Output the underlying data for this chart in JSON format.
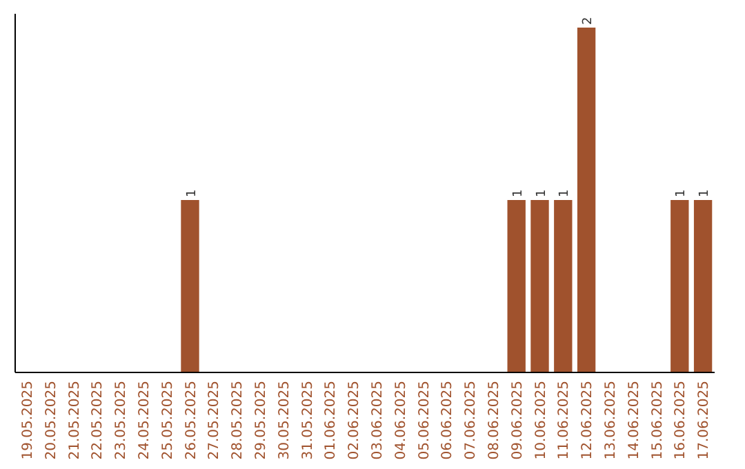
{
  "chart_data": {
    "type": "bar",
    "categories": [
      "19.05.2025",
      "20.05.2025",
      "21.05.2025",
      "22.05.2025",
      "23.05.2025",
      "24.05.2025",
      "25.05.2025",
      "26.05.2025",
      "27.05.2025",
      "28.05.2025",
      "29.05.2025",
      "30.05.2025",
      "31.05.2025",
      "01.06.2025",
      "02.06.2025",
      "03.06.2025",
      "04.06.2025",
      "05.06.2025",
      "06.06.2025",
      "07.06.2025",
      "08.06.2025",
      "09.06.2025",
      "10.06.2025",
      "11.06.2025",
      "12.06.2025",
      "13.06.2025",
      "14.06.2025",
      "15.06.2025",
      "16.06.2025",
      "17.06.2025"
    ],
    "values": [
      0,
      0,
      0,
      0,
      0,
      0,
      0,
      1,
      0,
      0,
      0,
      0,
      0,
      0,
      0,
      0,
      0,
      0,
      0,
      0,
      0,
      1,
      1,
      1,
      2,
      0,
      0,
      0,
      1,
      1
    ],
    "value_labels": [
      null,
      null,
      null,
      null,
      null,
      null,
      null,
      "1",
      null,
      null,
      null,
      null,
      null,
      null,
      null,
      null,
      null,
      null,
      null,
      null,
      null,
      "1",
      "1",
      "1",
      "2",
      null,
      null,
      null,
      "1",
      "1"
    ],
    "color": "#a0522d",
    "ylim": [
      0,
      2
    ],
    "tick_labels": "x"
  }
}
